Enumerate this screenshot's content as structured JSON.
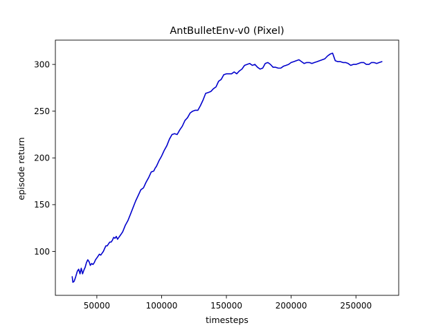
{
  "chart_data": {
    "type": "line",
    "title": "AntBulletEnv-v0 (Pixel)",
    "xlabel": "timesteps",
    "ylabel": "episode return",
    "xlim": [
      18000,
      283000
    ],
    "ylim": [
      53,
      326
    ],
    "xticks": [
      50000,
      100000,
      150000,
      200000,
      250000
    ],
    "xtick_labels": [
      "50000",
      "100000",
      "150000",
      "200000",
      "250000"
    ],
    "yticks": [
      100,
      150,
      200,
      250,
      300
    ],
    "ytick_labels": [
      "100",
      "150",
      "200",
      "250",
      "300"
    ],
    "grid": false,
    "legend": "none",
    "series": [
      {
        "color": "#0000cc",
        "x": [
          31000,
          31500,
          32500,
          33500,
          35000,
          36000,
          37000,
          38000,
          39000,
          40000,
          41000,
          42000,
          43000,
          44000,
          45000,
          46000,
          47000,
          48000,
          49000,
          50000,
          51000,
          52000,
          53000,
          54000,
          55000,
          56000,
          57000,
          58000,
          59000,
          60000,
          61000,
          62000,
          63000,
          64000,
          65000,
          66000,
          67000,
          68000,
          69000,
          70000,
          72000,
          74000,
          76000,
          78000,
          80000,
          82000,
          84000,
          86000,
          88000,
          90000,
          92000,
          94000,
          95000,
          96000,
          98000,
          100000,
          102000,
          104000,
          106000,
          108000,
          110000,
          112000,
          114000,
          116000,
          118000,
          120000,
          122000,
          124000,
          126000,
          128000,
          130000,
          132000,
          134000,
          136000,
          138000,
          140000,
          142000,
          144000,
          146000,
          148000,
          150000,
          152000,
          154000,
          156000,
          158000,
          160000,
          162000,
          164000,
          166000,
          168000,
          170000,
          172000,
          174000,
          176000,
          178000,
          180000,
          182000,
          184000,
          186000,
          188000,
          190000,
          192000,
          194000,
          196000,
          198000,
          200000,
          202000,
          204000,
          206000,
          208000,
          210000,
          212000,
          214000,
          216000,
          218000,
          220000,
          222000,
          224000,
          226000,
          228000,
          230000,
          232000,
          234000,
          236000,
          238000,
          240000,
          242000,
          244000,
          246000,
          248000,
          250000,
          252000,
          254000,
          256000,
          258000,
          260000,
          262000,
          264000,
          266000,
          268000,
          270000
        ],
        "y": [
          73,
          67,
          68,
          72,
          79,
          81,
          76,
          82,
          76,
          80,
          83,
          88,
          91,
          89,
          85,
          87,
          86,
          88,
          91,
          93,
          95,
          97,
          96,
          98,
          100,
          103,
          106,
          106,
          108,
          110,
          110,
          112,
          115,
          114,
          116,
          113,
          115,
          117,
          119,
          121,
          128,
          133,
          140,
          147,
          154,
          160,
          166,
          168,
          174,
          179,
          185,
          186,
          189,
          191,
          197,
          202,
          208,
          213,
          220,
          225,
          226,
          225,
          230,
          234,
          240,
          243,
          248,
          250,
          251,
          251,
          256,
          262,
          269,
          270,
          271,
          274,
          276,
          282,
          284,
          289,
          290,
          290,
          290,
          292,
          290,
          293,
          295,
          299,
          300,
          301,
          299,
          300,
          297,
          295,
          296,
          301,
          302,
          300,
          297,
          297,
          296,
          296,
          298,
          299,
          300,
          302,
          303,
          304,
          305,
          303,
          301,
          302,
          302,
          301,
          302,
          303,
          304,
          305,
          306,
          309,
          311,
          312,
          304,
          303,
          303,
          302,
          302,
          301,
          299,
          300,
          300,
          301,
          302,
          302,
          300,
          300,
          302,
          302,
          301,
          302,
          303
        ]
      }
    ]
  }
}
